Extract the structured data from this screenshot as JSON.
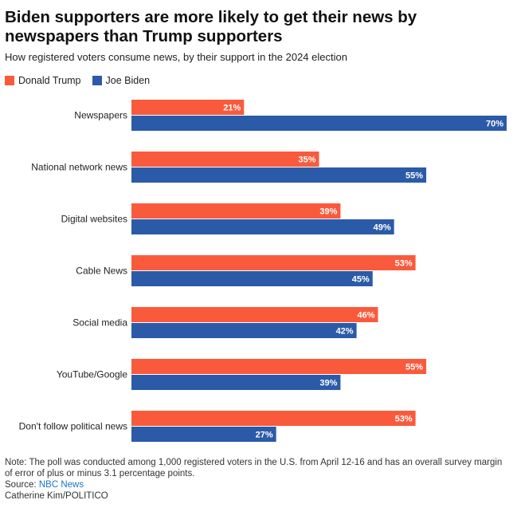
{
  "title": "Biden supporters are more likely to get their news by newspapers than Trump supporters",
  "subtitle": "How registered voters consume news, by their support in the 2024 election",
  "legend": [
    {
      "name": "Donald Trump",
      "color": "#fa5a3c"
    },
    {
      "name": "Joe Biden",
      "color": "#2b5ba8"
    }
  ],
  "chart_data": {
    "type": "bar",
    "orientation": "horizontal",
    "categories": [
      "Newspapers",
      "National network news",
      "Digital websites",
      "Cable News",
      "Social media",
      "YouTube/Google",
      "Don't follow political news"
    ],
    "series": [
      {
        "name": "Donald Trump",
        "color": "#fa5a3c",
        "values": [
          21,
          35,
          39,
          53,
          46,
          55,
          53
        ]
      },
      {
        "name": "Joe Biden",
        "color": "#2b5ba8",
        "values": [
          70,
          55,
          49,
          45,
          42,
          39,
          27
        ]
      }
    ],
    "value_suffix": "%",
    "xlim": [
      0,
      70
    ],
    "grid": false,
    "legend_position": "top-left"
  },
  "footer": {
    "note": "Note: The poll was conducted among 1,000 registered voters in the U.S. from April 12-16 and has an overall survey margin of error of plus or minus 3.1 percentage points.",
    "source_label": "Source:",
    "source_name": "NBC News",
    "credit": "Catherine Kim/POLITICO"
  }
}
